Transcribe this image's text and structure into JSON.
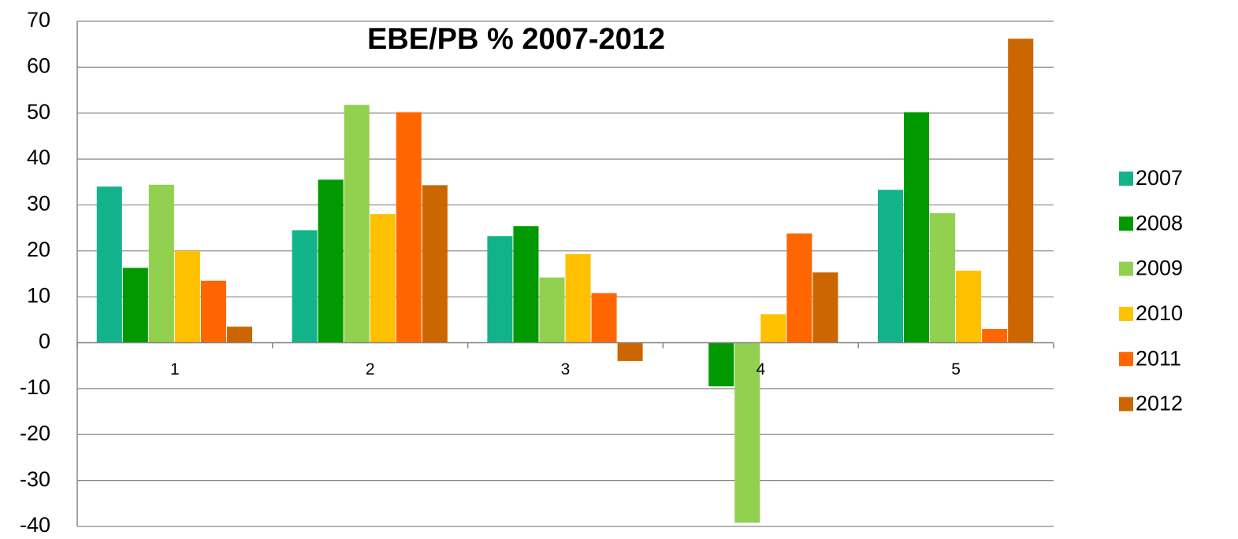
{
  "chart_data": {
    "type": "bar",
    "title": "EBE/PB % 2007-2012",
    "categories": [
      "1",
      "2",
      "3",
      "4",
      "5"
    ],
    "series": [
      {
        "name": "2007",
        "color": "#12b38b",
        "values": [
          34,
          24.5,
          23.2,
          null,
          33.3
        ]
      },
      {
        "name": "2008",
        "color": "#009900",
        "values": [
          16.3,
          35.5,
          25.4,
          -9.5,
          50.2
        ]
      },
      {
        "name": "2009",
        "color": "#92d050",
        "values": [
          34.4,
          51.8,
          14.2,
          -39.2,
          28.2
        ]
      },
      {
        "name": "2010",
        "color": "#ffc000",
        "values": [
          20,
          28,
          19.3,
          6.2,
          15.7
        ]
      },
      {
        "name": "2011",
        "color": "#ff6600",
        "values": [
          13.5,
          50.2,
          10.8,
          23.8,
          3
        ]
      },
      {
        "name": "2012",
        "color": "#cc6600",
        "values": [
          3.5,
          34.3,
          -4,
          15.3,
          66.2
        ]
      }
    ],
    "ylim": [
      -40,
      70
    ],
    "yticks": [
      -40,
      -30,
      -20,
      -10,
      0,
      10,
      20,
      30,
      40,
      50,
      60,
      70
    ],
    "grid": true,
    "legend": "right"
  }
}
